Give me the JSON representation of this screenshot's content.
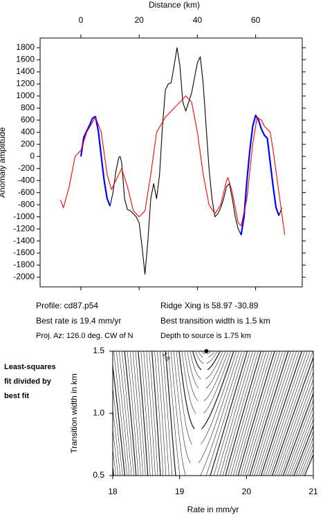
{
  "chart_data": [
    {
      "type": "line",
      "x_label": "Distance (km)",
      "y_label": "Anomaly amplitude",
      "xlim": [
        -14,
        76
      ],
      "ylim": [
        -2160,
        1960
      ],
      "xticks": [
        0,
        20,
        40,
        60
      ],
      "yticks": [
        -2000,
        -1800,
        -1600,
        -1400,
        -1200,
        -1000,
        -800,
        -600,
        -400,
        -200,
        0,
        200,
        400,
        600,
        800,
        1000,
        1200,
        1400,
        1600,
        1800
      ],
      "series": [
        {
          "color": "#000000",
          "x": [
            0,
            1,
            2,
            3,
            4,
            5,
            6,
            7,
            8,
            9,
            10,
            11,
            12,
            13,
            13.5,
            14,
            15,
            16,
            17,
            18,
            19,
            20,
            21,
            22,
            23,
            24,
            25,
            26,
            27,
            28,
            29,
            30,
            31,
            32,
            33,
            34,
            35,
            36,
            37,
            38,
            39,
            40,
            41,
            42,
            43,
            44,
            45,
            46,
            47,
            48,
            49,
            50,
            51,
            52,
            53,
            54,
            55,
            56,
            57,
            58,
            59,
            60,
            61,
            62,
            63,
            64,
            65,
            66,
            67,
            68,
            69
          ],
          "values": [
            0,
            320,
            420,
            520,
            630,
            660,
            420,
            0,
            -400,
            -700,
            -820,
            -600,
            -250,
            -20,
            0,
            -100,
            -700,
            -880,
            -900,
            -950,
            -1000,
            -1100,
            -1500,
            -1950,
            -1400,
            -700,
            -450,
            -700,
            -300,
            500,
            1100,
            1200,
            1220,
            1500,
            1800,
            1500,
            900,
            750,
            900,
            1050,
            1300,
            1550,
            1650,
            1200,
            500,
            -200,
            -700,
            -1000,
            -950,
            -850,
            -700,
            -500,
            -450,
            -700,
            -1000,
            -1200,
            -1300,
            -1000,
            -400,
            100,
            500,
            680,
            600,
            450,
            350,
            300,
            -100,
            -500,
            -850,
            -980,
            -850
          ]
        },
        {
          "color": "#0000ff",
          "x": [
            0,
            1,
            2,
            3,
            4,
            5,
            6,
            7,
            8,
            9,
            10,
            11,
            12,
            13,
            13.5,
            14,
            15,
            16,
            17,
            18,
            19,
            20,
            21,
            22,
            23,
            24,
            25,
            26,
            27,
            28,
            29,
            30,
            31,
            32,
            33,
            34,
            35,
            36,
            37,
            38,
            39,
            40,
            41,
            42,
            43,
            44,
            45,
            46,
            47,
            48,
            49,
            50,
            51,
            52,
            53,
            54,
            55,
            56,
            57,
            58,
            59,
            60,
            61,
            62,
            63,
            64,
            65,
            66,
            67,
            68,
            69
          ],
          "values": [
            0,
            320,
            420,
            520,
            630,
            660,
            420,
            0,
            -400,
            -700,
            -820,
            null,
            null,
            null,
            null,
            null,
            null,
            null,
            null,
            null,
            null,
            null,
            null,
            null,
            null,
            null,
            null,
            null,
            null,
            null,
            null,
            null,
            null,
            null,
            null,
            null,
            null,
            null,
            null,
            null,
            null,
            null,
            null,
            null,
            null,
            null,
            null,
            null,
            null,
            null,
            null,
            null,
            null,
            null,
            null,
            null,
            -1300,
            -1000,
            -400,
            100,
            500,
            680,
            600,
            450,
            350,
            300,
            -100,
            -500,
            -850,
            -980,
            null
          ]
        },
        {
          "color": "#ff0000",
          "x": [
            -7,
            -6,
            -4,
            -2,
            0,
            2,
            5,
            7,
            9,
            10.5,
            12,
            14,
            16,
            18,
            20,
            22,
            24,
            26,
            29,
            32,
            36,
            38,
            40,
            42,
            44,
            46,
            48,
            50,
            50.5,
            52,
            54,
            55,
            57,
            59,
            60.5,
            62,
            63,
            65,
            66,
            68,
            70
          ],
          "values": [
            -720,
            -850,
            -500,
            0,
            100,
            400,
            650,
            400,
            -300,
            -550,
            -400,
            -200,
            -500,
            -900,
            -1000,
            -900,
            -300,
            400,
            650,
            800,
            1000,
            900,
            400,
            -300,
            -800,
            -950,
            -800,
            -400,
            -350,
            -600,
            -1100,
            -1150,
            -700,
            200,
            650,
            600,
            500,
            400,
            100,
            -600,
            -1300
          ]
        }
      ],
      "annotations": [
        "Profile: cd87.p54",
        "Ridge Xing is 58.97 -30.89",
        "Best rate is 19.4 mm/yr",
        "Best transition width is 1.5 km",
        "Proj. Az: 126.0 deg. CW of N",
        "Depth to source is   1.75 km"
      ]
    },
    {
      "type": "contour",
      "note": [
        "Least-squares",
        "fit divided by",
        "best fit"
      ],
      "x_label": "Rate in mm/yr",
      "y_label": "Transition width in km",
      "xlim": [
        18,
        21
      ],
      "ylim": [
        0.5,
        1.5
      ],
      "xticks": [
        18,
        19,
        20,
        21
      ],
      "yticks": [
        0.5,
        {
          "value": 1.0,
          "label": "1.0"
        },
        1.5
      ],
      "contour_label": "1.5",
      "best_fit": {
        "x": 19.4,
        "y": 1.5
      }
    }
  ]
}
